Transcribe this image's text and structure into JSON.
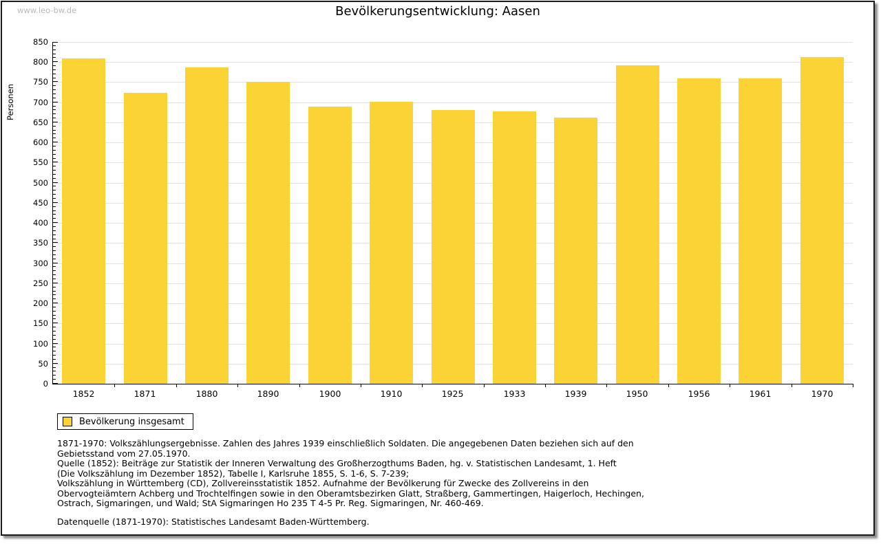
{
  "watermark": "www.leo-bw.de",
  "header": {
    "title": "Bevölkerungsentwicklung: Aasen"
  },
  "colors": {
    "bar": "#fcd335",
    "grid": "#e2e2e2",
    "axis": "#000000",
    "watermark": "#b9b9b9"
  },
  "chart_data": {
    "type": "bar",
    "title": "Bevölkerungsentwicklung: Aasen",
    "xlabel": "",
    "ylabel": "Personen",
    "categories": [
      "1852",
      "1871",
      "1880",
      "1890",
      "1900",
      "1910",
      "1925",
      "1933",
      "1939",
      "1950",
      "1956",
      "1961",
      "1970"
    ],
    "values": [
      809,
      724,
      786,
      750,
      689,
      702,
      680,
      678,
      662,
      791,
      760,
      760,
      813
    ],
    "ylim": [
      0,
      850
    ],
    "y_major_step": 50,
    "y_minor_step": 10,
    "grid": true,
    "bar_color": "#fcd335",
    "legend": [
      "Bevölkerung insgesamt"
    ],
    "legend_position": "bottom-left"
  },
  "legend": {
    "label": "Bevölkerung insgesamt"
  },
  "footnotes": {
    "lines": [
      "1871-1970: Volkszählungsergebnisse. Zahlen des Jahres 1939 einschließlich Soldaten. Die angegebenen Daten beziehen sich auf den",
      "Gebietsstand vom 27.05.1970.",
      "Quelle (1852): Beiträge zur Statistik der Inneren Verwaltung des Großherzogthums Baden, hg. v. Statistischen Landesamt, 1. Heft",
      "(Die Volkszählung im Dezember 1852), Tabelle I, Karlsruhe 1855, S. 1-6, S. 7-239;",
      "Volkszählung in Württemberg (CD), Zollvereinsstatistik 1852. Aufnahme der Bevölkerung für Zwecke des Zollvereins in den",
      "Obervogteiämtern Achberg und Trochtelfingen sowie in den Oberamtsbezirken Glatt, Straßberg, Gammertingen, Haigerloch, Hechingen,",
      "Ostrach, Sigmaringen, und Wald; StA Sigmaringen Ho 235 T 4-5 Pr. Reg. Sigmaringen, Nr. 460-469."
    ],
    "datenquelle": "Datenquelle (1871-1970): Statistisches Landesamt Baden-Württemberg."
  }
}
